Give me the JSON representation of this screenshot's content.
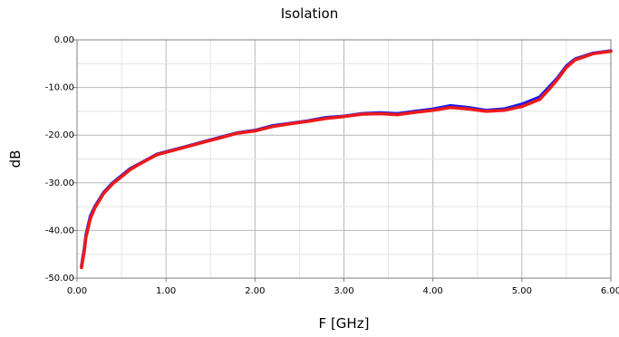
{
  "chart_data": {
    "type": "line",
    "title": "Isolation",
    "xlabel": "F [GHz]",
    "ylabel": "dB",
    "xlim": [
      0,
      6
    ],
    "ylim": [
      -50,
      0
    ],
    "grid": true,
    "legend": "none",
    "x_ticks": [
      "0.00",
      "1.00",
      "2.00",
      "3.00",
      "4.00",
      "5.00",
      "6.00"
    ],
    "y_ticks": [
      "0.00",
      "-10.00",
      "-20.00",
      "-30.00",
      "-40.00",
      "-50.00"
    ],
    "x_tick_values": [
      0,
      1,
      2,
      3,
      4,
      5,
      6
    ],
    "y_tick_values": [
      0,
      -10,
      -20,
      -30,
      -40,
      -50
    ],
    "series": [
      {
        "color": "#1a1aee",
        "x": [
          0.05,
          0.08,
          0.1,
          0.15,
          0.2,
          0.3,
          0.4,
          0.5,
          0.6,
          0.7,
          0.8,
          0.9,
          1.0,
          1.2,
          1.4,
          1.6,
          1.8,
          2.0,
          2.2,
          2.4,
          2.6,
          2.8,
          3.0,
          3.2,
          3.4,
          3.6,
          3.8,
          4.0,
          4.2,
          4.4,
          4.6,
          4.8,
          5.0,
          5.2,
          5.3,
          5.4,
          5.5,
          5.6,
          5.8,
          6.0
        ],
        "y": [
          -47.5,
          -44.0,
          -41.0,
          -37.0,
          -35.0,
          -32.0,
          -30.0,
          -28.5,
          -27.0,
          -26.0,
          -25.0,
          -24.0,
          -23.5,
          -22.5,
          -21.5,
          -20.5,
          -19.5,
          -19.0,
          -18.0,
          -17.5,
          -17.0,
          -16.3,
          -16.0,
          -15.5,
          -15.3,
          -15.5,
          -15.0,
          -14.5,
          -13.8,
          -14.2,
          -14.8,
          -14.5,
          -13.5,
          -12.0,
          -10.0,
          -8.0,
          -5.5,
          -4.0,
          -2.8,
          -2.3
        ]
      },
      {
        "color": "#ee1a1a",
        "x": [
          0.05,
          0.08,
          0.1,
          0.15,
          0.2,
          0.3,
          0.4,
          0.5,
          0.6,
          0.7,
          0.8,
          0.9,
          1.0,
          1.2,
          1.4,
          1.6,
          1.8,
          2.0,
          2.2,
          2.4,
          2.6,
          2.8,
          3.0,
          3.2,
          3.4,
          3.6,
          3.8,
          4.0,
          4.2,
          4.4,
          4.6,
          4.8,
          5.0,
          5.2,
          5.3,
          5.4,
          5.5,
          5.6,
          5.8,
          6.0
        ],
        "y": [
          -47.8,
          -44.5,
          -41.5,
          -37.5,
          -35.3,
          -32.2,
          -30.2,
          -28.7,
          -27.2,
          -26.1,
          -25.1,
          -24.1,
          -23.6,
          -22.6,
          -21.6,
          -20.6,
          -19.6,
          -19.1,
          -18.2,
          -17.6,
          -17.1,
          -16.5,
          -16.1,
          -15.6,
          -15.5,
          -15.7,
          -15.2,
          -14.8,
          -14.2,
          -14.5,
          -15.0,
          -14.8,
          -14.0,
          -12.5,
          -10.5,
          -8.3,
          -5.8,
          -4.2,
          -2.9,
          -2.4
        ]
      }
    ]
  }
}
